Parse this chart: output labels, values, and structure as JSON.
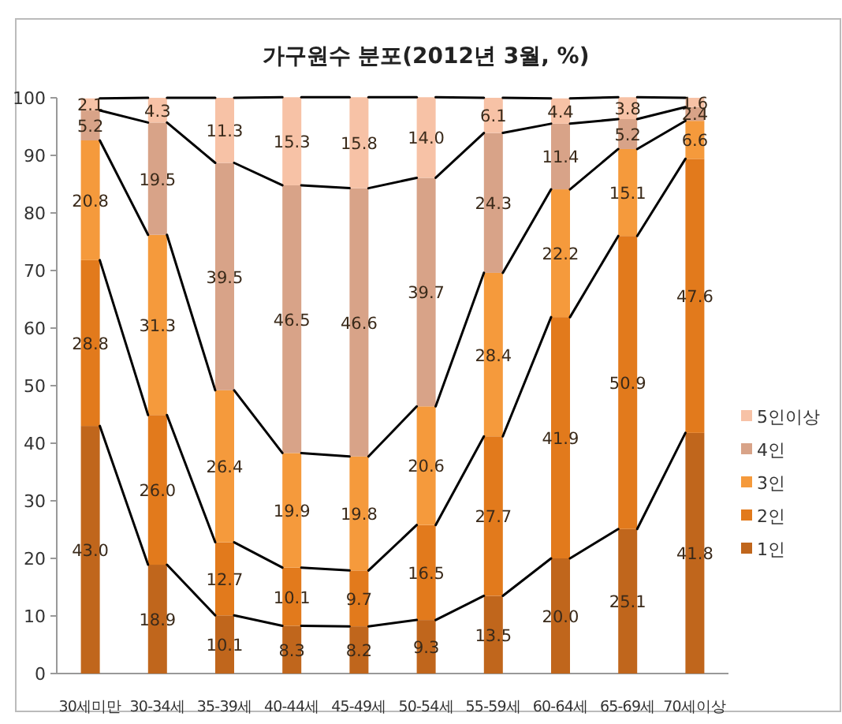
{
  "chart_data": {
    "type": "bar",
    "stacked": true,
    "title": "가구원수 분포(2012년 3월, %)",
    "categories": [
      "30세미만",
      "30-34세",
      "35-39세",
      "40-44세",
      "45-49세",
      "50-54세",
      "55-59세",
      "60-64세",
      "65-69세",
      "70세이상"
    ],
    "series": [
      {
        "name": "1인",
        "color": "#c0661c",
        "values": [
          43.0,
          18.9,
          10.1,
          8.3,
          8.2,
          9.3,
          13.5,
          20.0,
          25.1,
          41.8
        ],
        "value_labels": [
          "43.0",
          "18.9",
          "10.1",
          "8.3",
          "8.2",
          "9.3",
          "13.5",
          "20.0",
          "25.1",
          "41.8"
        ]
      },
      {
        "name": "2인",
        "color": "#e27a1c",
        "values": [
          28.8,
          26.0,
          12.7,
          10.1,
          9.7,
          16.5,
          27.7,
          41.9,
          50.9,
          47.6
        ],
        "value_labels": [
          "28.8",
          "26.0",
          "12.7",
          "10.1",
          "9.7",
          "16.5",
          "27.7",
          "41.9",
          "50.9",
          "47.6"
        ]
      },
      {
        "name": "3인",
        "color": "#f59a3c",
        "values": [
          20.8,
          31.3,
          26.4,
          19.9,
          19.8,
          20.6,
          28.4,
          22.2,
          15.1,
          6.6
        ],
        "value_labels": [
          "20.8",
          "31.3",
          "26.4",
          "19.9",
          "19.8",
          "20.6",
          "28.4",
          "22.2",
          "15.1",
          "6.6"
        ]
      },
      {
        "name": "4인",
        "color": "#d8a388",
        "values": [
          5.2,
          19.5,
          39.5,
          46.5,
          46.6,
          39.7,
          24.3,
          11.4,
          5.2,
          2.4
        ],
        "value_labels": [
          "5.2",
          "19.5",
          "39.5",
          "46.5",
          "46.6",
          "39.7",
          "24.3",
          "11.4",
          "5.2",
          "2.4"
        ]
      },
      {
        "name": "5인이상",
        "color": "#f7c2a6",
        "values": [
          2.1,
          4.3,
          11.3,
          15.3,
          15.8,
          14.0,
          6.1,
          4.4,
          3.8,
          1.6
        ],
        "value_labels": [
          "2.1",
          "4.3",
          "11.3",
          "15.3",
          "15.8",
          "14.0",
          "6.1",
          "4.4",
          "3.8",
          "1.6"
        ]
      }
    ],
    "ylim": [
      0,
      100
    ],
    "yticks": [
      0,
      10,
      20,
      30,
      40,
      50,
      60,
      70,
      80,
      90,
      100
    ],
    "legend": "right",
    "grid": false
  }
}
